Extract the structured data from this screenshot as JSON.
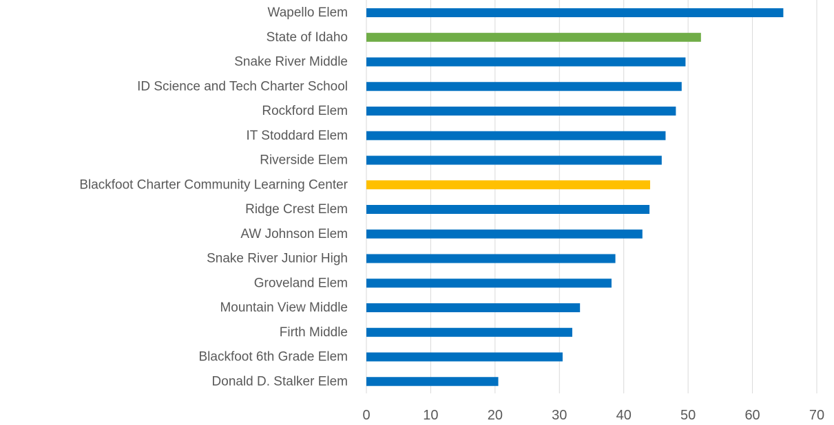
{
  "chart_data": {
    "type": "bar",
    "orientation": "horizontal",
    "categories": [
      "Wapello Elem",
      "State of Idaho",
      "Snake River Middle",
      "ID Science and Tech Charter School",
      "Rockford Elem",
      "IT Stoddard Elem",
      "Riverside Elem",
      "Blackfoot Charter Community Learning Center",
      "Ridge Crest Elem",
      "AW Johnson Elem",
      "Snake River Junior High",
      "Groveland Elem",
      "Mountain View Middle",
      "Firth Middle",
      "Blackfoot 6th Grade Elem",
      "Donald D. Stalker Elem"
    ],
    "values": [
      64.8,
      52.0,
      49.6,
      49.0,
      48.1,
      46.5,
      45.9,
      44.1,
      44.0,
      42.9,
      38.7,
      38.1,
      33.2,
      32.0,
      30.5,
      20.5
    ],
    "bar_colors": [
      "#0070c0",
      "#70ad47",
      "#0070c0",
      "#0070c0",
      "#0070c0",
      "#0070c0",
      "#0070c0",
      "#ffc000",
      "#0070c0",
      "#0070c0",
      "#0070c0",
      "#0070c0",
      "#0070c0",
      "#0070c0",
      "#0070c0",
      "#0070c0"
    ],
    "default_color": "#0070c0",
    "highlight_colors": {
      "state": "#70ad47",
      "focus_school": "#ffc000"
    },
    "xlim": [
      0,
      70
    ],
    "xticks": [
      "0",
      "10",
      "20",
      "30",
      "40",
      "50",
      "60",
      "70"
    ],
    "title": "",
    "xlabel": "",
    "ylabel": "",
    "grid": "vertical"
  }
}
